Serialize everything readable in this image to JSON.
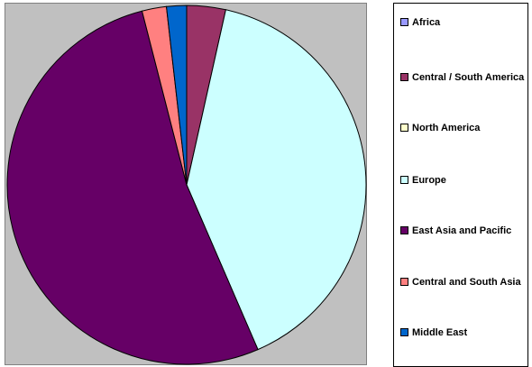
{
  "chart_data": {
    "type": "pie",
    "categories": [
      "Africa",
      "Central / South America",
      "North America",
      "Europe",
      "East Asia and Pacific",
      "Central and South Asia",
      "Middle East"
    ],
    "values": [
      0,
      3.5,
      0,
      40,
      52.5,
      2.2,
      1.8
    ],
    "colors": [
      "#9999ff",
      "#993366",
      "#ffffcc",
      "#ccffff",
      "#660066",
      "#ff8080",
      "#0066cc"
    ],
    "start_angle_deg": 0,
    "direction": "clockwise",
    "legend_position": "right",
    "background_color": "#c0c0c0"
  }
}
